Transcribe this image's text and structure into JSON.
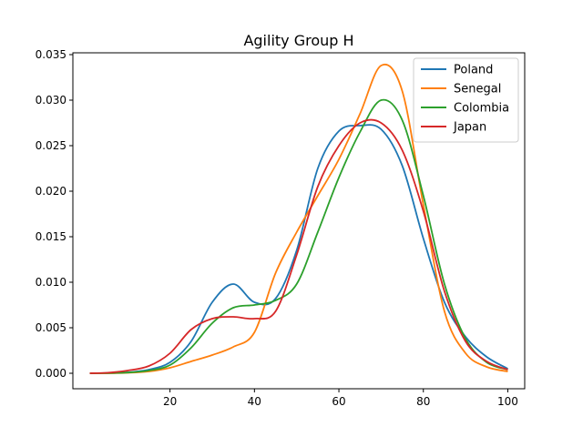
{
  "chart_data": {
    "type": "line",
    "title": "Agility Group H",
    "xlabel": "",
    "ylabel": "",
    "xlim": [
      -3,
      104
    ],
    "ylim": [
      -0.0017,
      0.0352
    ],
    "xticks": [
      20,
      40,
      60,
      80,
      100
    ],
    "xtick_labels": [
      "20",
      "40",
      "60",
      "80",
      "100"
    ],
    "yticks": [
      0.0,
      0.005,
      0.01,
      0.015,
      0.02,
      0.025,
      0.03,
      0.035
    ],
    "ytick_labels": [
      "0.000",
      "0.005",
      "0.010",
      "0.015",
      "0.020",
      "0.025",
      "0.030",
      "0.035"
    ],
    "grid": false,
    "legend_position": "top-right",
    "x": [
      1,
      5,
      10,
      15,
      20,
      25,
      30,
      35,
      40,
      45,
      50,
      55,
      60,
      65,
      70,
      75,
      80,
      85,
      90,
      95,
      100
    ],
    "series": [
      {
        "name": "Poland",
        "color": "#1f77b4",
        "values": [
          0.0,
          2e-05,
          0.0001,
          0.0004,
          0.0012,
          0.0035,
          0.0078,
          0.0098,
          0.0078,
          0.0082,
          0.0135,
          0.0225,
          0.0266,
          0.0272,
          0.0268,
          0.0228,
          0.0148,
          0.0078,
          0.004,
          0.0018,
          0.0005
        ]
      },
      {
        "name": "Senegal",
        "color": "#ff7f0e",
        "values": [
          0.0,
          0.0,
          5e-05,
          0.0002,
          0.0006,
          0.0013,
          0.002,
          0.0029,
          0.0045,
          0.011,
          0.0155,
          0.0195,
          0.0235,
          0.0285,
          0.0338,
          0.031,
          0.0185,
          0.0068,
          0.0022,
          0.0007,
          0.0002
        ]
      },
      {
        "name": "Colombia",
        "color": "#2ca02c",
        "values": [
          0.0,
          2e-05,
          8e-05,
          0.0003,
          0.0009,
          0.0028,
          0.0055,
          0.0072,
          0.0075,
          0.008,
          0.0098,
          0.0155,
          0.0215,
          0.0265,
          0.03,
          0.0278,
          0.0195,
          0.0098,
          0.0038,
          0.0012,
          0.0004
        ]
      },
      {
        "name": "Japan",
        "color": "#d62728",
        "values": [
          0.0,
          5e-05,
          0.0003,
          0.0008,
          0.0022,
          0.0048,
          0.006,
          0.0062,
          0.006,
          0.0068,
          0.013,
          0.0205,
          0.025,
          0.0275,
          0.0275,
          0.0245,
          0.0178,
          0.009,
          0.0035,
          0.0013,
          0.0004
        ]
      }
    ]
  }
}
